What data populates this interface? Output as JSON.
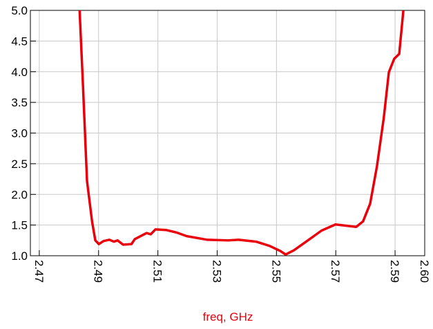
{
  "chart_data": {
    "type": "line",
    "xlabel": "freq, GHz",
    "xlim": [
      2.467,
      2.6
    ],
    "xticks": [
      2.47,
      2.49,
      2.51,
      2.53,
      2.55,
      2.57,
      2.59,
      {
        "value": 2.6,
        "label": "2.60"
      }
    ],
    "ylim": [
      1,
      5
    ],
    "yticks": [
      {
        "value": 1,
        "label": "1.0"
      },
      1.5,
      {
        "value": 2,
        "label": "2.0"
      },
      2.5,
      {
        "value": 3,
        "label": "3.0"
      },
      3.5,
      {
        "value": 4,
        "label": "4.0"
      },
      4.5,
      {
        "value": 5,
        "label": "5.0"
      }
    ],
    "grid": true,
    "series": [
      {
        "color": "#e8000b",
        "x": [
          2.4836,
          2.4847,
          2.4861,
          2.4878,
          2.4889,
          2.4901,
          2.4917,
          2.4936,
          2.4952,
          2.4964,
          2.4983,
          2.5011,
          2.5022,
          2.5046,
          2.5062,
          2.5076,
          2.5092,
          2.5127,
          2.5162,
          2.5197,
          2.5267,
          2.5337,
          2.5372,
          2.5431,
          2.5477,
          2.5512,
          2.5531,
          2.5559,
          2.5606,
          2.5652,
          2.5699,
          2.5734,
          2.5769,
          2.5792,
          2.5816,
          2.5839,
          2.5862,
          2.5879,
          2.5897,
          2.5914,
          2.5928
        ],
        "values": [
          5.0,
          3.82,
          2.22,
          1.56,
          1.25,
          1.19,
          1.24,
          1.26,
          1.23,
          1.25,
          1.18,
          1.19,
          1.27,
          1.33,
          1.37,
          1.35,
          1.43,
          1.42,
          1.38,
          1.32,
          1.26,
          1.25,
          1.26,
          1.23,
          1.16,
          1.08,
          1.02,
          1.09,
          1.25,
          1.41,
          1.51,
          1.49,
          1.47,
          1.56,
          1.85,
          2.46,
          3.25,
          3.99,
          4.21,
          4.29,
          5.0
        ]
      }
    ]
  }
}
